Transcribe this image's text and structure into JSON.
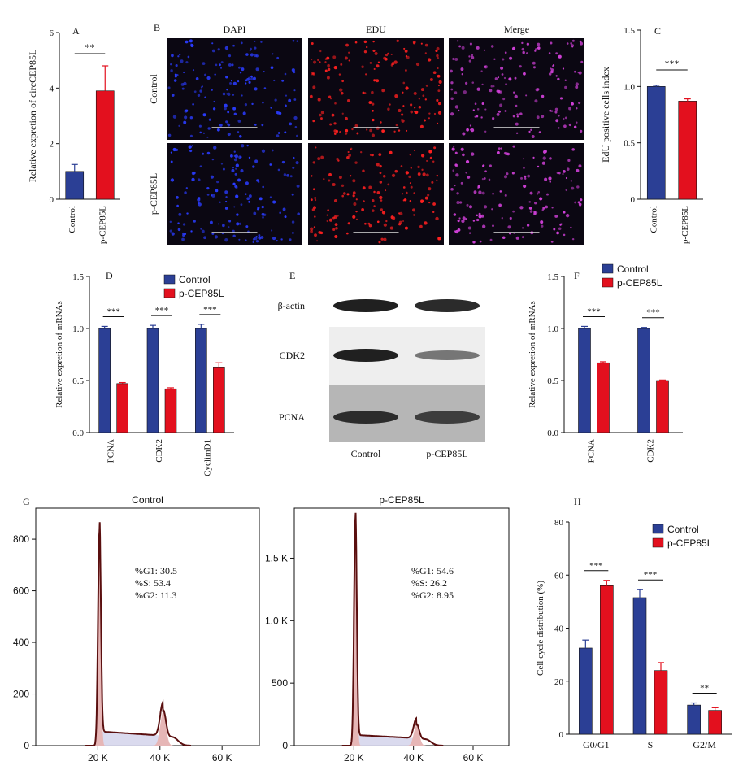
{
  "colors": {
    "control": "#2b3f95",
    "treated": "#e3101e",
    "axis": "#111111",
    "histFill": "#e6b6b6",
    "histLine": "#5a0f0f",
    "histFill2": "#d6d6ec"
  },
  "chart_data": [
    {
      "panel": "A",
      "type": "bar",
      "ylabel": "Relative expretion of circCEP85L",
      "ylim": [
        0,
        6
      ],
      "yticks": [
        "0",
        "2",
        "4",
        "6"
      ],
      "categories": [
        "Control",
        "p-CEP85L"
      ],
      "values": [
        1.0,
        3.9
      ],
      "errors": [
        0.25,
        0.9
      ],
      "significance": [
        {
          "label": "**",
          "between": [
            0,
            1
          ]
        }
      ]
    },
    {
      "panel": "B",
      "type": "image-grid",
      "columns": [
        "DAPI",
        "EDU",
        "Merge"
      ],
      "rows": [
        "Control",
        "p-CEP85L"
      ]
    },
    {
      "panel": "C",
      "type": "bar",
      "ylabel": "EdU positive cells index",
      "ylim": [
        0,
        1.5
      ],
      "yticks": [
        "0",
        "0.5",
        "1.0",
        "1.5"
      ],
      "categories": [
        "Control",
        "p-CEP85L"
      ],
      "values": [
        1.0,
        0.87
      ],
      "errors": [
        0.01,
        0.02
      ],
      "significance": [
        {
          "label": "***",
          "between": [
            0,
            1
          ]
        }
      ]
    },
    {
      "panel": "D",
      "type": "bar",
      "ylabel": "Relative expretion of mRNAs",
      "ylim": [
        0,
        1.5
      ],
      "yticks": [
        "0.0",
        "0.5",
        "1.0",
        "1.5"
      ],
      "categories": [
        "PCNA",
        "CDK2",
        "CyclimD1"
      ],
      "legend": [
        "Control",
        "p-CEP85L"
      ],
      "series": [
        {
          "name": "Control",
          "values": [
            1.0,
            1.0,
            1.0
          ],
          "errors": [
            0.02,
            0.03,
            0.04
          ]
        },
        {
          "name": "p-CEP85L",
          "values": [
            0.47,
            0.42,
            0.63
          ],
          "errors": [
            0.01,
            0.01,
            0.04
          ]
        }
      ],
      "significance": [
        "***",
        "***",
        "***"
      ]
    },
    {
      "panel": "E",
      "type": "western-blot",
      "bands": [
        "β-actin",
        "CDK2",
        "PCNA"
      ],
      "lanes": [
        "Control",
        "p-CEP85L"
      ]
    },
    {
      "panel": "F",
      "type": "bar",
      "ylabel": "Relative expretion of mRNAs",
      "ylim": [
        0,
        1.5
      ],
      "yticks": [
        "0.0",
        "0.5",
        "1.0",
        "1.5"
      ],
      "categories": [
        "PCNA",
        "CDK2"
      ],
      "legend": [
        "Control",
        "p-CEP85L"
      ],
      "series": [
        {
          "name": "Control",
          "values": [
            1.0,
            1.0
          ],
          "errors": [
            0.02,
            0.01
          ]
        },
        {
          "name": "p-CEP85L",
          "values": [
            0.67,
            0.5
          ],
          "errors": [
            0.01,
            0.005
          ]
        }
      ],
      "significance": [
        "***",
        "***"
      ]
    },
    {
      "panel": "G1",
      "type": "area",
      "title": "Control",
      "xticks": [
        "20 K",
        "40 K",
        "60 K"
      ],
      "yticks": [
        "0",
        "200",
        "400",
        "600",
        "800"
      ],
      "ylim": [
        0,
        920
      ],
      "xlim": [
        0,
        72000
      ],
      "stats": [
        "%G1: 30.5",
        "%S: 53.4",
        "%G2: 11.3"
      ],
      "peaks": [
        {
          "x": 20500,
          "y": 830
        },
        {
          "x": 41000,
          "y": 130
        }
      ]
    },
    {
      "panel": "G2",
      "type": "area",
      "title": "p-CEP85L",
      "xticks": [
        "20 K",
        "40 K",
        "60 K"
      ],
      "yticks": [
        "0",
        "500",
        "1.0 K",
        "1.5 K"
      ],
      "ylim": [
        0,
        1900
      ],
      "xlim": [
        0,
        72000
      ],
      "stats": [
        "%G1: 54.6",
        "%S: 26.2",
        "%G2: 8.95"
      ],
      "peaks": [
        {
          "x": 20500,
          "y": 1820
        },
        {
          "x": 41000,
          "y": 160
        }
      ]
    },
    {
      "panel": "H",
      "type": "bar",
      "ylabel": "Cell cycle distribution (%)",
      "ylim": [
        0,
        80
      ],
      "yticks": [
        "0",
        "20",
        "40",
        "60",
        "80"
      ],
      "categories": [
        "G0/G1",
        "S",
        "G2/M"
      ],
      "legend": [
        "Control",
        "p-CEP85L"
      ],
      "series": [
        {
          "name": "Control",
          "values": [
            32.5,
            51.5,
            11
          ],
          "errors": [
            3,
            3,
            0.8
          ]
        },
        {
          "name": "p-CEP85L",
          "values": [
            56,
            24,
            9
          ],
          "errors": [
            2,
            3,
            1
          ]
        }
      ],
      "significance": [
        "***",
        "***",
        "**"
      ]
    }
  ]
}
